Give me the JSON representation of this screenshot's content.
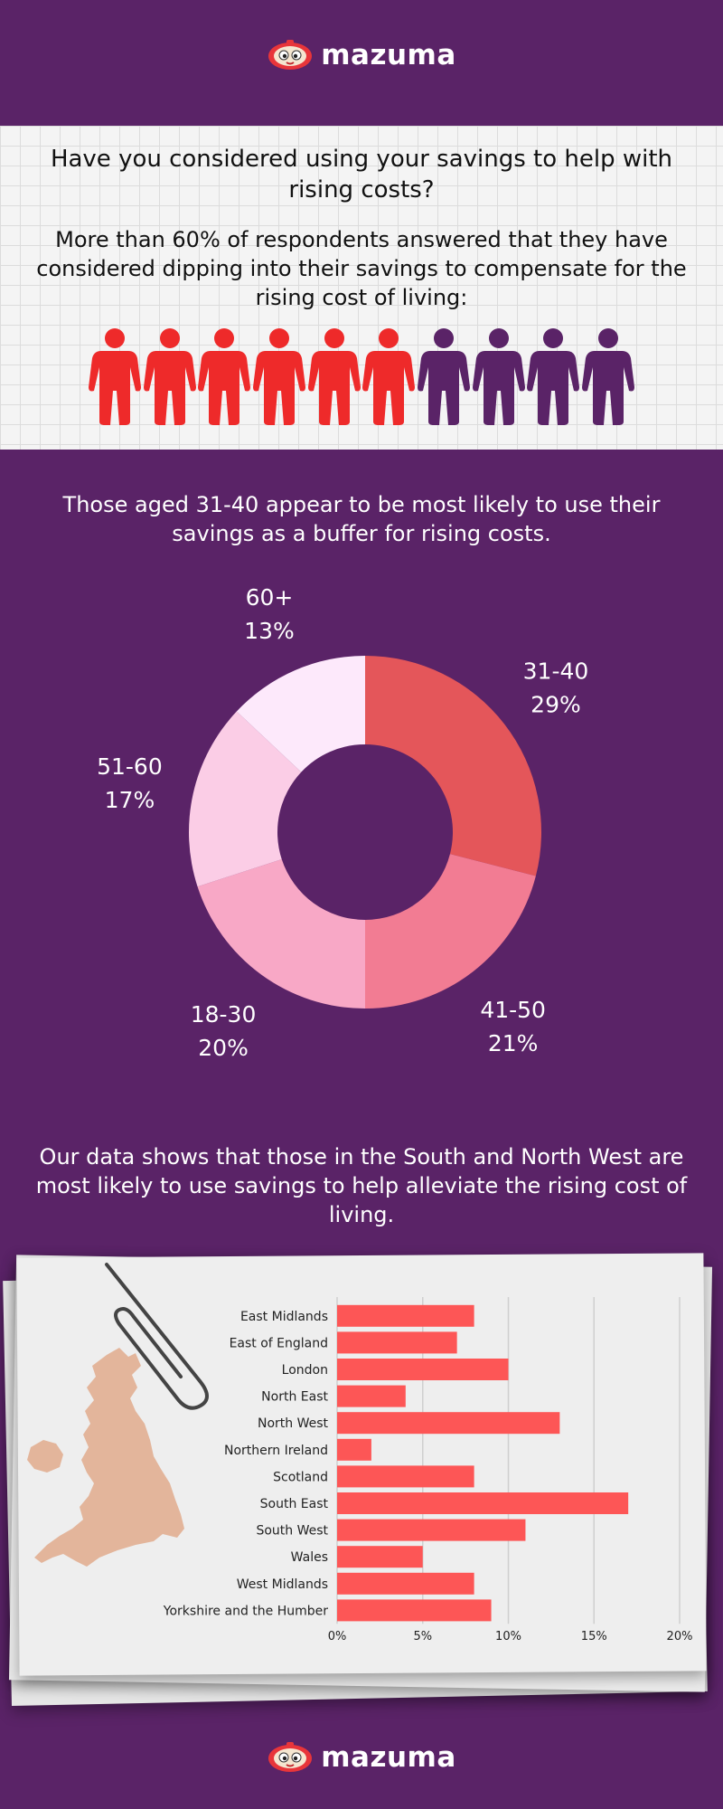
{
  "brand": {
    "name": "mazuma"
  },
  "section1": {
    "title": "Have you considered using your savings to help with rising costs?",
    "body": "More than 60% of respondents answered that they have considered dipping into their savings to compensate for the rising cost of living:",
    "people_total": 10,
    "people_highlighted": 6,
    "colors": {
      "highlight": "#ee2a2a",
      "rest": "#5a2367"
    }
  },
  "section2": {
    "text": "Those aged 31-40 appear to be most likely to use their savings as a buffer for rising costs."
  },
  "section3": {
    "text": "Our data shows that those in the South and North West are most likely to use savings to help alleviate the rising cost of living."
  },
  "chart_data": [
    {
      "type": "pie",
      "variant": "donut",
      "categories": [
        "31-40",
        "41-50",
        "18-30",
        "51-60",
        "60+"
      ],
      "values": [
        29,
        21,
        20,
        17,
        13
      ],
      "labels": [
        "29%",
        "21%",
        "20%",
        "17%",
        "13%"
      ],
      "colors": [
        "#e4565a",
        "#f27c93",
        "#f8a8c6",
        "#fbcde6",
        "#fde9fb"
      ]
    },
    {
      "type": "bar",
      "orientation": "horizontal",
      "categories": [
        "East Midlands",
        "East of England",
        "London",
        "North East",
        "North West",
        "Northern Ireland",
        "Scotland",
        "South East",
        "South West",
        "Wales",
        "West Midlands",
        "Yorkshire and the Humber"
      ],
      "values": [
        8,
        7,
        10,
        4,
        13,
        2,
        8,
        17,
        11,
        5,
        8,
        9
      ],
      "xlim": [
        0,
        20
      ],
      "xticks": [
        "0%",
        "5%",
        "10%",
        "15%",
        "20%"
      ],
      "grid": true,
      "color": "#fd5656"
    }
  ]
}
